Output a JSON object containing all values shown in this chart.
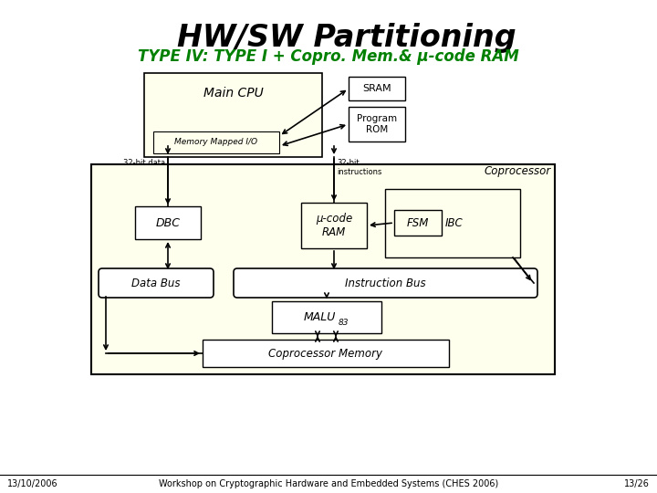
{
  "title": "HW/SW Partitioning",
  "subtitle": "TYPE IV: TYPE I + Copro. Mem.& μ-code RAM",
  "title_color": "#000000",
  "subtitle_color": "#008000",
  "bg_color": "#ffffff",
  "yellow_bg": "#ffffee",
  "footer_left": "13/10/2006",
  "footer_center": "Workshop on Cryptographic Hardware and Embedded Systems (CHES 2006)",
  "footer_right": "13/26"
}
